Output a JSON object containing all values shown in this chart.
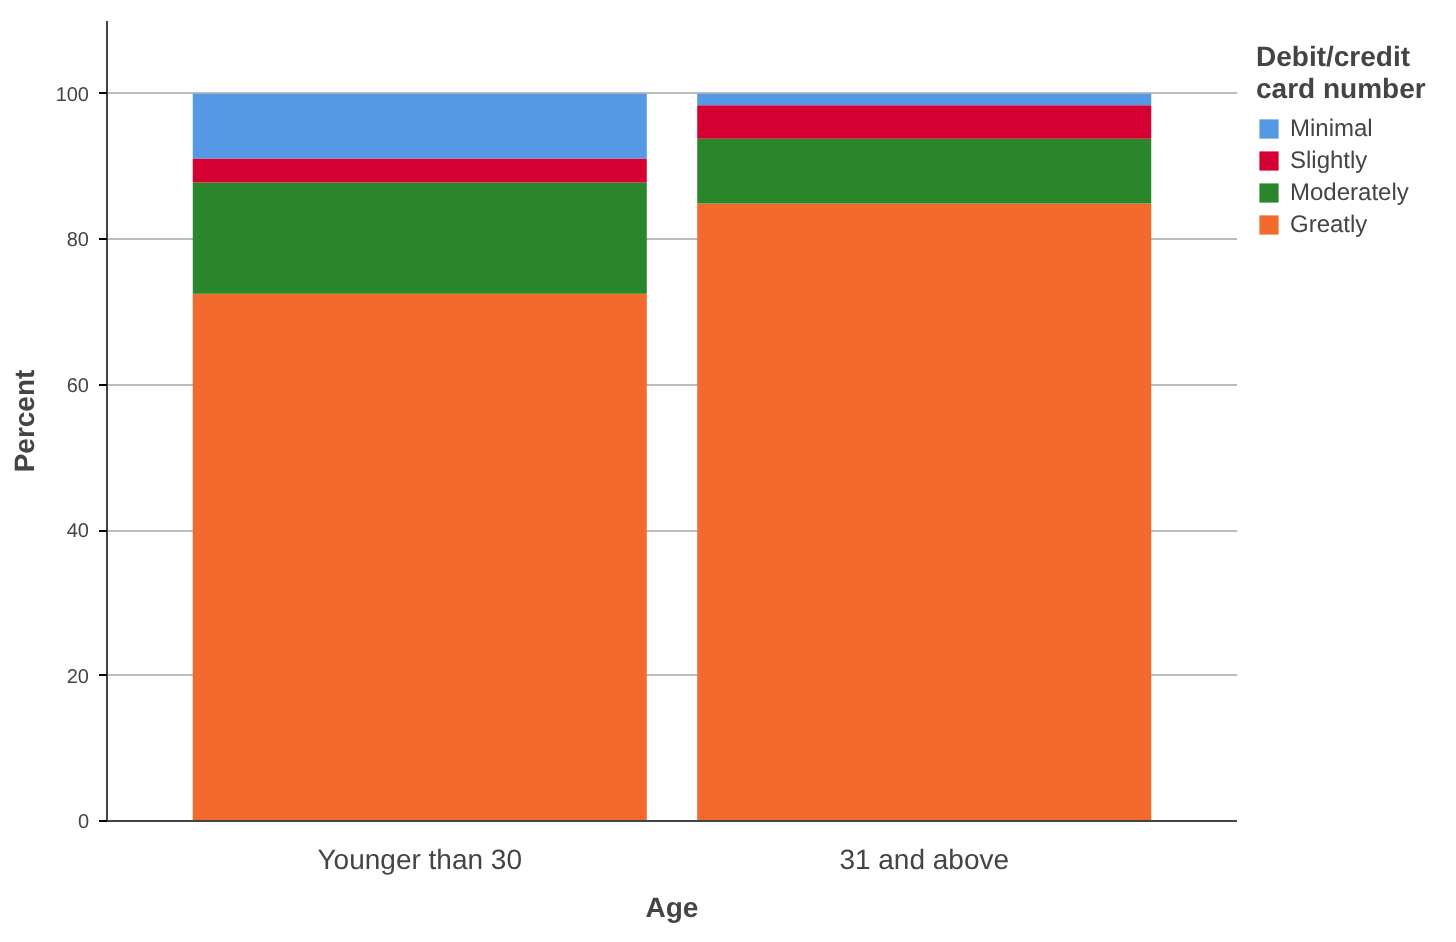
{
  "chart_data": {
    "type": "bar",
    "stacked": true,
    "xlabel": "Age",
    "ylabel": "Percent",
    "legend_title": "Debit/credit card number",
    "legend": "right",
    "categories": [
      "Younger than 30",
      "31 and above"
    ],
    "series": [
      {
        "name": "Greatly",
        "color": "#f26a2c",
        "values": [
          72.5,
          84.9
        ]
      },
      {
        "name": "Moderately",
        "color": "#2a862a",
        "values": [
          15.3,
          8.9
        ]
      },
      {
        "name": "Slightly",
        "color": "#d50032",
        "values": [
          3.3,
          4.6
        ]
      },
      {
        "name": "Minimal",
        "color": "#5598e3",
        "values": [
          8.9,
          1.6
        ]
      }
    ],
    "ylim": [
      0,
      110
    ],
    "yticks": [
      0,
      20,
      40,
      60,
      80,
      100
    ],
    "grid": "y"
  }
}
